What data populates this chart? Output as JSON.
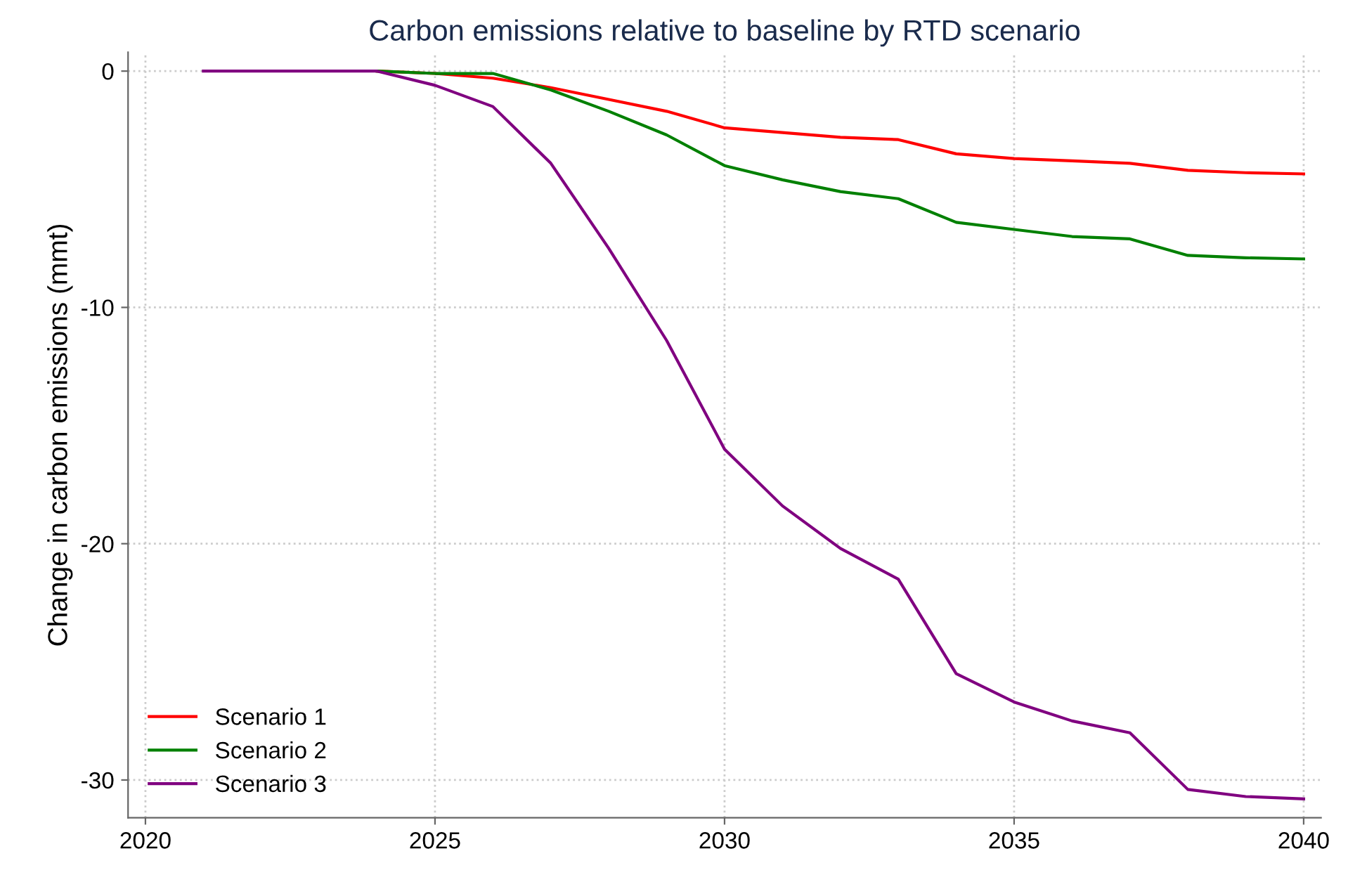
{
  "chart_data": {
    "type": "line",
    "title": "Carbon emissions relative to baseline by RTD scenario",
    "ylabel": "Change in carbon emissions (mmt)",
    "x": [
      2021,
      2022,
      2023,
      2024,
      2025,
      2026,
      2027,
      2028,
      2029,
      2030,
      2031,
      2032,
      2033,
      2034,
      2035,
      2036,
      2037,
      2038,
      2039,
      2040
    ],
    "series": [
      {
        "name": "Scenario 1",
        "color": "#ff0000",
        "values": [
          null,
          null,
          null,
          0,
          -0.1,
          -0.3,
          -0.7,
          -1.2,
          -1.7,
          -2.4,
          -2.6,
          -2.8,
          -2.9,
          -3.5,
          -3.7,
          -3.8,
          -3.9,
          -4.2,
          -4.3,
          -4.35
        ]
      },
      {
        "name": "Scenario 2",
        "color": "#008000",
        "values": [
          null,
          null,
          null,
          0,
          -0.1,
          -0.1,
          -0.8,
          -1.7,
          -2.7,
          -4.0,
          -4.6,
          -5.1,
          -5.4,
          -6.4,
          -6.7,
          -7.0,
          -7.1,
          -7.8,
          -7.9,
          -7.95
        ]
      },
      {
        "name": "Scenario 3",
        "color": "#800080",
        "values": [
          0,
          0,
          0,
          0,
          -0.6,
          -1.5,
          -3.9,
          -7.5,
          -11.4,
          -16.0,
          -18.4,
          -20.2,
          -21.5,
          -25.5,
          -26.7,
          -27.5,
          -28.0,
          -30.4,
          -30.7,
          -30.8
        ]
      }
    ],
    "xlim": [
      2019.7,
      2040.3
    ],
    "xticks": [
      2020,
      2025,
      2030,
      2035,
      2040
    ],
    "ylim": [
      -31.6,
      0.8
    ],
    "yticks": [
      {
        "value": -30,
        "label": "-30"
      },
      {
        "value": -20,
        "label": "-20"
      },
      {
        "value": -10,
        "label": "-10"
      },
      0
    ],
    "grid": true,
    "legend": "bottom left",
    "line_style": "solid",
    "marker": "none"
  }
}
